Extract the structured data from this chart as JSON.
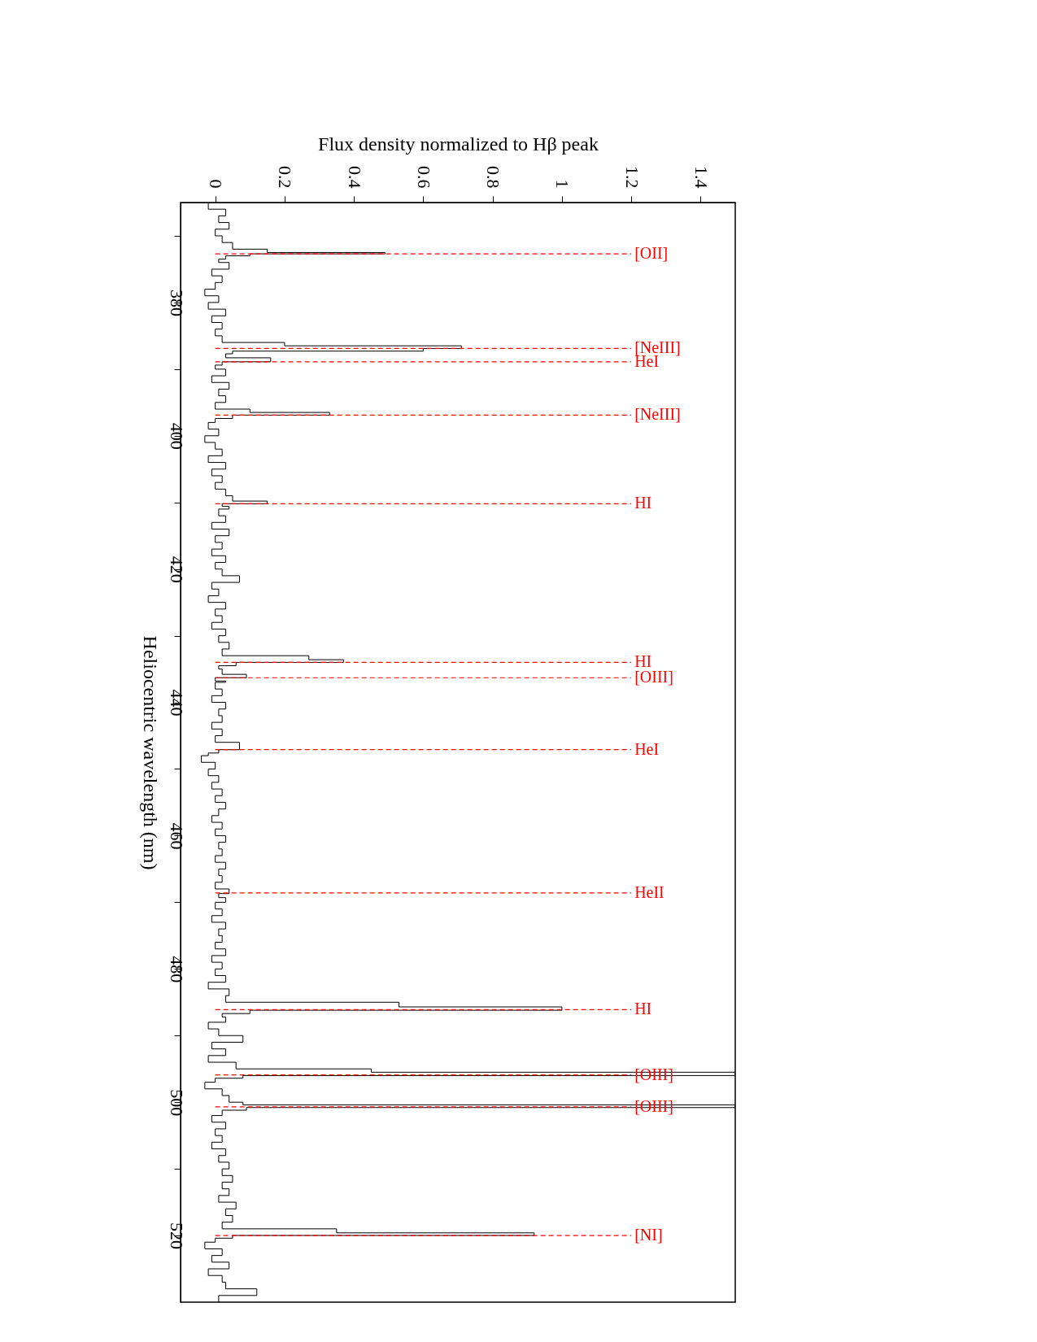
{
  "chart_data": {
    "type": "step",
    "xlabel": "Flux density normalized to Hβ peak",
    "ylabel": "Heliocentric wavelength (nm)",
    "x": [
      0,
      -0.02,
      0.03,
      0.01,
      0.04,
      0,
      0.02,
      0.05,
      0.15,
      0.49,
      0.1,
      0.03,
      0.01,
      0.04,
      -0.01,
      0.02,
      0,
      -0.03,
      0.01,
      -0.02,
      0.03,
      -0.01,
      0.02,
      0,
      0.02,
      0.2,
      0.71,
      0.6,
      0.05,
      0.03,
      0.16,
      0.02,
      0,
      0.03,
      -0.01,
      0.04,
      0.01,
      0.03,
      0,
      0.1,
      0.33,
      0.05,
      0,
      -0.02,
      0.01,
      -0.03,
      0,
      0.02,
      -0.02,
      0.03,
      -0.01,
      0.02,
      0,
      0.03,
      0.05,
      0.15,
      0.02,
      0.04,
      0.01,
      0.03,
      -0.01,
      0.04,
      0,
      0.02,
      -0.01,
      0.03,
      0,
      0.02,
      0.07,
      -0.01,
      0.01,
      -0.02,
      0.03,
      0,
      0.02,
      -0.01,
      0.03,
      0.01,
      0.04,
      0.02,
      0.27,
      0.37,
      0.06,
      0.01,
      0.02,
      0.09,
      0,
      0.03,
      0,
      0.02,
      -0.01,
      0.03,
      0.01,
      0.02,
      -0.01,
      0.02,
      0,
      0.07,
      0.01,
      -0.02,
      -0.04,
      0,
      -0.02,
      0.01,
      -0.01,
      0.02,
      0,
      0.03,
      0.01,
      -0.01,
      0.02,
      0,
      0.03,
      0.01,
      0.02,
      0,
      0.03,
      0.01,
      0.02,
      0,
      0.04,
      0.01,
      0.03,
      0,
      0.02,
      -0.01,
      0.03,
      0.01,
      0.02,
      0,
      0.03,
      -0.01,
      0.02,
      0,
      0.03,
      -0.02,
      0.04,
      0.03,
      0.53,
      1.0,
      0.1,
      0.02,
      0.03,
      -0.02,
      0.01,
      0.08,
      -0.01,
      0.03,
      -0.02,
      0.06,
      0.45,
      1.5,
      0.08,
      0,
      -0.03,
      0.02,
      0.04,
      0.08,
      1.5,
      0.09,
      0.02,
      -0.01,
      0.03,
      0,
      0.02,
      -0.01,
      0.03,
      0.01,
      0.04,
      0.02,
      0.05,
      0.02,
      0.04,
      0.01,
      0.06,
      0.03,
      0.05,
      0.02,
      0.35,
      0.92,
      0.05,
      0,
      -0.03,
      0.02,
      -0.01,
      0.04,
      -0.02,
      0.02,
      0.03,
      0.12,
      0.01
    ],
    "series": [
      {
        "color": "#000000",
        "values": [
          365,
          366,
          367,
          368,
          369,
          370,
          371,
          372,
          372.5,
          372.7,
          373,
          373.5,
          374,
          375,
          376,
          377,
          378,
          379,
          380,
          381,
          382,
          383,
          384,
          385,
          386,
          386.5,
          386.9,
          387.3,
          387.7,
          388.3,
          388.9,
          389.4,
          390,
          391,
          392,
          393,
          394,
          395,
          396,
          396.5,
          396.9,
          397.4,
          398,
          399,
          400,
          401,
          402,
          403,
          404,
          405,
          406,
          407,
          408,
          409,
          409.8,
          410.2,
          410.6,
          411,
          412,
          413,
          414,
          415,
          416,
          417,
          418,
          419,
          420,
          421,
          422,
          423,
          424,
          425,
          426,
          427,
          428,
          429,
          430,
          431,
          432,
          433,
          433.6,
          434,
          434.5,
          435,
          435.8,
          436.3,
          436.8,
          437,
          438,
          439,
          440,
          441,
          442,
          443,
          444,
          445,
          446,
          447.1,
          447.6,
          448,
          449,
          450,
          451,
          452,
          453,
          454,
          455,
          456,
          457,
          458,
          459,
          460,
          461,
          462,
          463,
          464,
          465,
          466,
          467,
          468,
          468.7,
          469.3,
          470,
          471,
          472,
          473,
          474,
          475,
          476,
          477,
          478,
          479,
          480,
          481,
          482,
          483,
          484,
          485,
          485.7,
          486.2,
          486.7,
          487.2,
          488,
          489,
          490,
          491,
          492,
          493,
          494,
          495,
          495.5,
          496,
          496.4,
          497,
          498,
          499,
          500,
          500.4,
          500.8,
          501.2,
          502,
          503,
          504,
          505,
          506,
          507,
          508,
          509,
          510,
          511,
          512,
          513,
          514,
          515,
          516,
          517,
          518,
          519,
          519.6,
          520,
          520.4,
          521,
          522,
          523,
          524,
          525,
          526,
          527,
          528,
          529,
          530
        ]
      }
    ],
    "xlim": [
      -0.1,
      1.5
    ],
    "ylim": [
      530,
      365
    ],
    "xticks": [
      0,
      0.2,
      0.4,
      0.6,
      0.8,
      1,
      1.2,
      1.4
    ],
    "yticks": [
      {
        "value": 370,
        "label": null
      },
      380,
      {
        "value": 390,
        "label": null
      },
      400,
      {
        "value": 410,
        "label": null
      },
      420,
      {
        "value": 430,
        "label": null
      },
      440,
      {
        "value": 450,
        "label": null
      },
      460,
      {
        "value": 470,
        "label": null
      },
      480,
      {
        "value": 490,
        "label": null
      },
      500,
      {
        "value": 510,
        "label": null
      },
      520
    ],
    "ref_lines": [
      {
        "axis": "y",
        "value": 372.7,
        "label": "[OII]",
        "color": "#ff0000",
        "line_style": "dashed"
      },
      {
        "axis": "y",
        "value": 386.9,
        "label": "[NeIII]",
        "color": "#ff0000",
        "line_style": "dashed"
      },
      {
        "axis": "y",
        "value": 388.9,
        "label": "HeI",
        "color": "#ff0000",
        "line_style": "dashed"
      },
      {
        "axis": "y",
        "value": 396.9,
        "label": "[NeIII]",
        "color": "#ff0000",
        "line_style": "dashed"
      },
      {
        "axis": "y",
        "value": 410.2,
        "label": "HI",
        "color": "#ff0000",
        "line_style": "dashed"
      },
      {
        "axis": "y",
        "value": 434.0,
        "label": "HI",
        "color": "#ff0000",
        "line_style": "dashed"
      },
      {
        "axis": "y",
        "value": 436.3,
        "label": "[OIII]",
        "color": "#ff0000",
        "line_style": "dashed"
      },
      {
        "axis": "y",
        "value": 447.1,
        "label": "HeI",
        "color": "#ff0000",
        "line_style": "dashed"
      },
      {
        "axis": "y",
        "value": 468.6,
        "label": "HeII",
        "color": "#ff0000",
        "line_style": "dashed"
      },
      {
        "axis": "y",
        "value": 486.1,
        "label": "HI",
        "color": "#ff0000",
        "line_style": "dashed"
      },
      {
        "axis": "y",
        "value": 495.9,
        "label": "[OIII]",
        "color": "#ff0000",
        "line_style": "dashed"
      },
      {
        "axis": "y",
        "value": 500.7,
        "label": "[OIII]",
        "color": "#ff0000",
        "line_style": "dashed"
      },
      {
        "axis": "y",
        "value": 520.0,
        "label": "[NI]",
        "color": "#ff0000",
        "line_style": "dashed"
      }
    ],
    "grid": false
  }
}
